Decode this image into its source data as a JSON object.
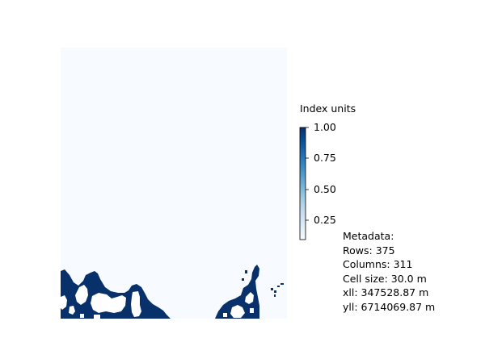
{
  "colorbar": {
    "title": "Index units",
    "ticks": [
      "1.00",
      "0.75",
      "0.50",
      "0.25"
    ],
    "tick_values": [
      1.0,
      0.75,
      0.5,
      0.25
    ],
    "range": [
      0.0,
      1.0
    ],
    "colormap": "Blues",
    "color_low": "#f7fbff",
    "color_high": "#08306b"
  },
  "map": {
    "background_value_color": "#f7fbff",
    "feature_color": "#08306b",
    "nodata_color": "#ffffff"
  },
  "metadata": {
    "heading": "Metadata:",
    "rows": "Rows: 375",
    "columns": "Columns: 311",
    "cell_size": "Cell size: 30.0 m",
    "xll": "xll: 347528.87 m",
    "yll": "yll: 6714069.87 m"
  }
}
